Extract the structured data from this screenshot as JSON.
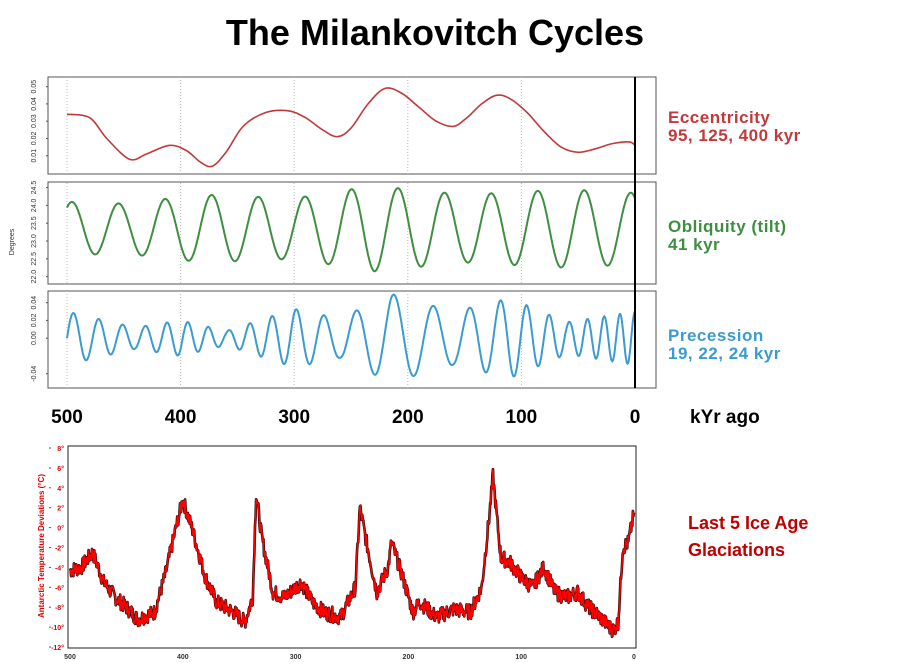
{
  "title": "The Milankovitch Cycles",
  "colors": {
    "eccentricity": "#c0393b",
    "obliquity": "#3e8e41",
    "precession": "#3a9bd0",
    "temperature": "#ff0000",
    "temperature_label": "#c00000",
    "axis_red": "#e00000"
  },
  "chart_data": [
    {
      "name": "eccentricity",
      "type": "line",
      "label_line1": "Eccentricity",
      "label_line2": "95, 125, 400 kyr",
      "ylabel": "",
      "yticks": [
        "0.01",
        "0.02",
        "0.03",
        "0.04",
        "0.05"
      ],
      "ylim": [
        0.0,
        0.055
      ],
      "xlim": [
        500,
        0
      ],
      "x": [
        500,
        480,
        465,
        445,
        430,
        410,
        395,
        382,
        372,
        360,
        345,
        325,
        305,
        290,
        275,
        262,
        250,
        235,
        220,
        205,
        190,
        175,
        160,
        148,
        135,
        122,
        110,
        95,
        80,
        65,
        50,
        35,
        20,
        5,
        0
      ],
      "values": [
        0.034,
        0.032,
        0.02,
        0.008,
        0.011,
        0.016,
        0.013,
        0.006,
        0.004,
        0.012,
        0.027,
        0.035,
        0.036,
        0.032,
        0.025,
        0.021,
        0.026,
        0.04,
        0.049,
        0.046,
        0.038,
        0.03,
        0.027,
        0.032,
        0.04,
        0.045,
        0.043,
        0.035,
        0.024,
        0.015,
        0.012,
        0.014,
        0.017,
        0.018,
        0.016
      ]
    },
    {
      "name": "obliquity",
      "type": "line",
      "label_line1": "Obliquity (tilt)",
      "label_line2": "41 kyr",
      "ylabel": "Degrees",
      "yticks": [
        "22.0",
        "22.5",
        "23.0",
        "23.5",
        "24.0",
        "24.5"
      ],
      "ylim": [
        21.85,
        24.6
      ],
      "xlim": [
        500,
        0
      ],
      "period_kyr": 41,
      "mean": 23.35,
      "amplitudes": [
        {
          "x": 500,
          "a": 0.75
        },
        {
          "x": 450,
          "a": 0.7
        },
        {
          "x": 380,
          "a": 0.95
        },
        {
          "x": 300,
          "a": 0.85
        },
        {
          "x": 230,
          "a": 1.2
        },
        {
          "x": 150,
          "a": 0.95
        },
        {
          "x": 60,
          "a": 1.1
        },
        {
          "x": 0,
          "a": 1.0
        }
      ]
    },
    {
      "name": "precession",
      "type": "line",
      "label_line1": "Precession",
      "label_line2": "19, 22, 24 kyr",
      "ylabel": "",
      "yticks": [
        "-0.04",
        "0.00",
        "0.02",
        "0.04"
      ],
      "ylim": [
        -0.055,
        0.052
      ],
      "xlim": [
        500,
        0
      ],
      "period_kyr": 21.5,
      "amplitudes": [
        {
          "x": 500,
          "a": 0.03
        },
        {
          "x": 440,
          "a": 0.012
        },
        {
          "x": 400,
          "a": 0.02
        },
        {
          "x": 360,
          "a": 0.008
        },
        {
          "x": 300,
          "a": 0.033
        },
        {
          "x": 260,
          "a": 0.022
        },
        {
          "x": 215,
          "a": 0.05
        },
        {
          "x": 160,
          "a": 0.03
        },
        {
          "x": 110,
          "a": 0.045
        },
        {
          "x": 60,
          "a": 0.018
        },
        {
          "x": 0,
          "a": 0.03
        }
      ]
    },
    {
      "name": "temperature",
      "type": "line",
      "label_line1": "Last 5 Ice Age",
      "label_line2": "Glaciations",
      "ylabel": "Antarctic Temperature Deviations (°C)",
      "yticks": [
        "-12°",
        "-10°",
        "-8°",
        "-6°",
        "-4°",
        "-2°",
        "0°",
        "2°",
        "4°",
        "6°",
        "8°"
      ],
      "ylim": [
        -12,
        8
      ],
      "xlim": [
        500,
        0
      ],
      "x": [
        500,
        490,
        480,
        470,
        460,
        450,
        440,
        425,
        415,
        405,
        400,
        392,
        380,
        370,
        355,
        345,
        338,
        335,
        330,
        320,
        310,
        295,
        285,
        275,
        260,
        247,
        243,
        238,
        228,
        218,
        215,
        205,
        196,
        190,
        175,
        160,
        145,
        135,
        128,
        125,
        122,
        118,
        110,
        100,
        90,
        80,
        70,
        60,
        50,
        40,
        30,
        22,
        18,
        14,
        10,
        5,
        0
      ],
      "values": [
        -4.3,
        -4.0,
        -2.5,
        -5.5,
        -7.0,
        -8.0,
        -9.2,
        -8.5,
        -4.5,
        0.5,
        2.8,
        0.0,
        -5.0,
        -7.5,
        -8.5,
        -9.5,
        -7.0,
        3.5,
        -1.0,
        -6.5,
        -7.0,
        -5.5,
        -7.5,
        -8.5,
        -9.0,
        -6.0,
        2.0,
        -1.0,
        -6.5,
        -4.0,
        -1.5,
        -5.0,
        -8.5,
        -7.5,
        -9.0,
        -8.2,
        -8.5,
        -6.0,
        1.5,
        5.2,
        1.5,
        -3.0,
        -3.5,
        -5.0,
        -6.0,
        -4.0,
        -6.5,
        -7.0,
        -6.5,
        -8.0,
        -9.0,
        -10.0,
        -10.3,
        -9.5,
        -2.0,
        -1.5,
        1.5
      ]
    }
  ],
  "shared_x_ticks": [
    "500",
    "400",
    "300",
    "200",
    "100",
    "0"
  ],
  "shared_x_values": [
    500,
    400,
    300,
    200,
    100,
    0
  ],
  "x_unit_label": "kYr ago",
  "temperature_x_ticks": [
    "500",
    "400",
    "300",
    "200",
    "100",
    "0"
  ]
}
